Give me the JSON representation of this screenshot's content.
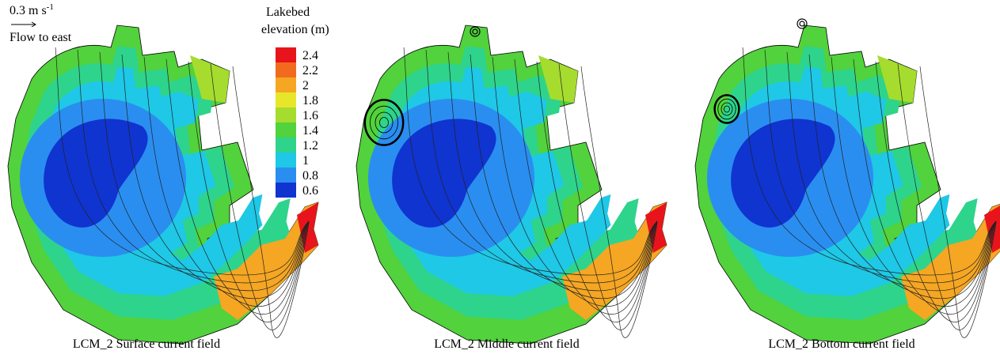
{
  "speed_scale": {
    "label": "0.3 m s",
    "superscript": "-1",
    "direction": "Flow to east"
  },
  "colorbar": {
    "title_line1": "Lakebed",
    "title_line2": "elevation (m)",
    "ticks": [
      2.4,
      2.2,
      2,
      1.8,
      1.6,
      1.4,
      1.2,
      1,
      0.8,
      0.6
    ],
    "colors": [
      "#e8141c",
      "#f26a1e",
      "#f5a623",
      "#e8e62a",
      "#a6dc2e",
      "#52d23c",
      "#2ed48c",
      "#1ec8e6",
      "#2a8ef0",
      "#1034d0"
    ]
  },
  "panels": [
    {
      "caption": "LCM_2 Surface current field"
    },
    {
      "caption": "LCM_2 Middle current field"
    },
    {
      "caption": "LCM_2 Bottom current field"
    }
  ]
}
